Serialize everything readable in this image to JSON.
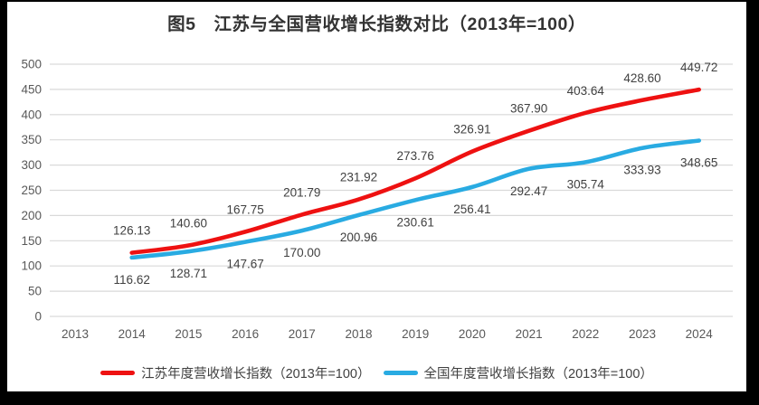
{
  "title": "图5　江苏与全国营收增长指数对比（2013年=100）",
  "colors": {
    "grid": "#d9d9d9",
    "axis_text": "#595959",
    "data_label_text": "#404040",
    "jiangsu_red": "#ee1111",
    "national_blue": "#29abe2",
    "background": "#ffffff",
    "frame": "#000000"
  },
  "chart_data": {
    "type": "line",
    "title": "图5　江苏与全国营收增长指数对比（2013年=100）",
    "x": [
      2013,
      2014,
      2015,
      2016,
      2017,
      2018,
      2019,
      2020,
      2021,
      2022,
      2023,
      2024
    ],
    "series": [
      {
        "name": "江苏年度营收增长指数（2013年=100）",
        "color": "#ee1111",
        "start_index": 1,
        "values": [
          126.13,
          140.6,
          167.75,
          201.79,
          231.92,
          273.76,
          326.91,
          367.9,
          403.64,
          428.6,
          449.72
        ]
      },
      {
        "name": "全国年度营收增长指数（2013年=100）",
        "color": "#29abe2",
        "start_index": 1,
        "values": [
          116.62,
          128.71,
          147.67,
          170.0,
          200.96,
          230.61,
          256.41,
          292.47,
          305.74,
          333.93,
          348.65
        ]
      }
    ],
    "xlabel": "",
    "ylabel": "",
    "ylim": [
      0,
      500
    ],
    "ytick_step": 50,
    "grid": true,
    "data_labels": true,
    "legend_position": "bottom"
  }
}
